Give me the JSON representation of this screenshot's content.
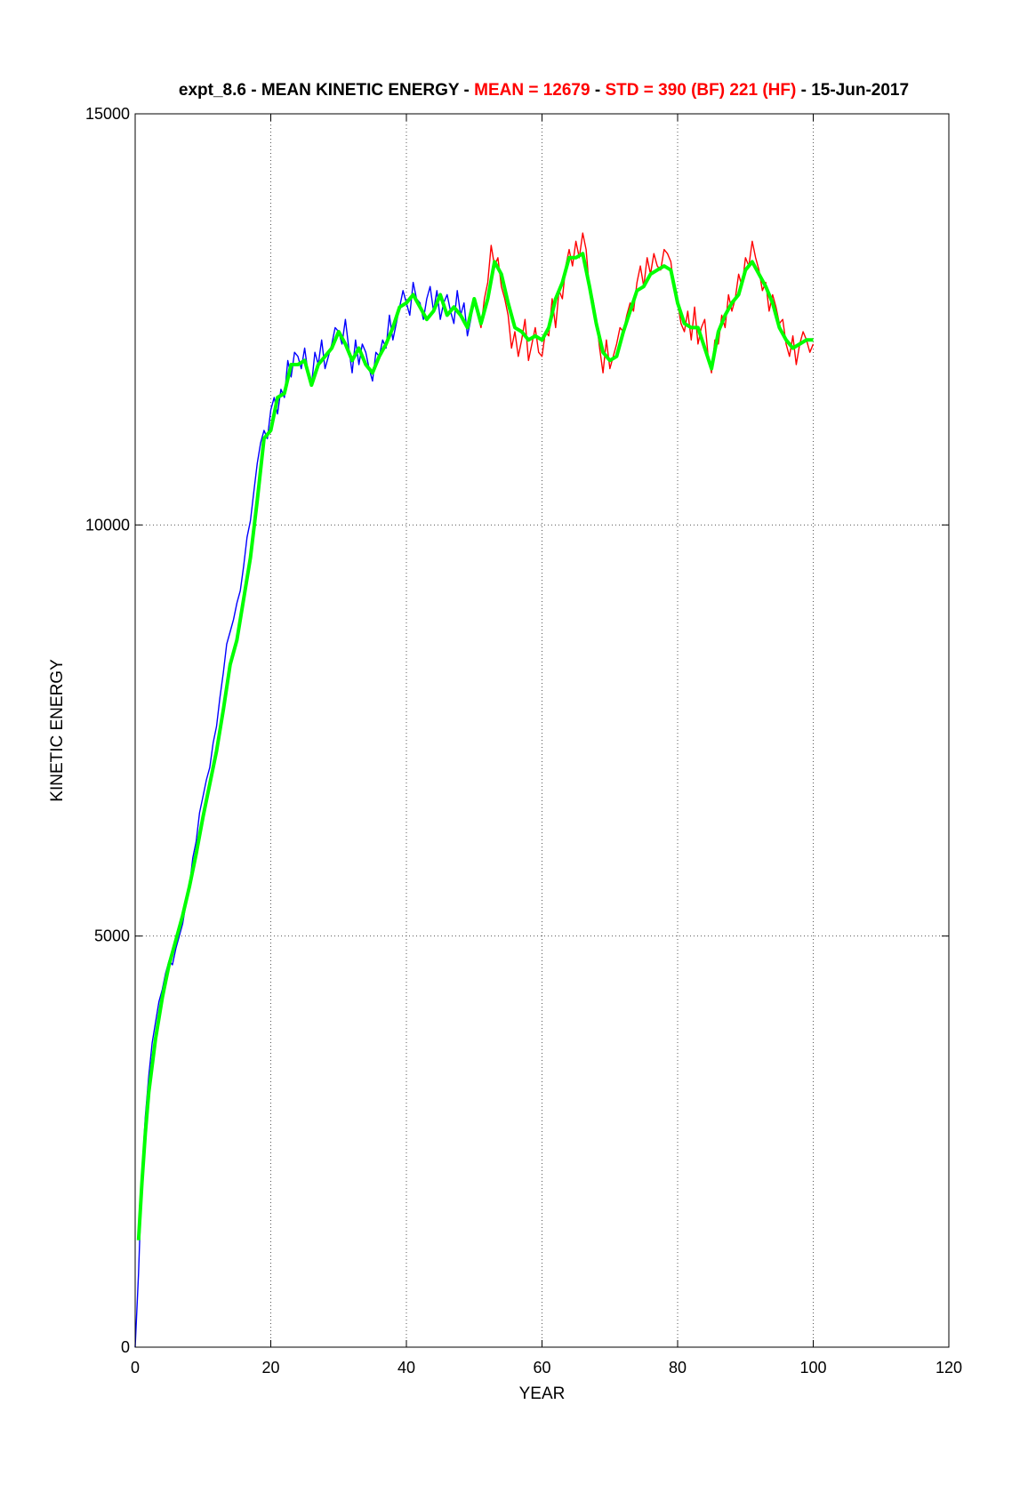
{
  "chart_data": {
    "type": "line",
    "title": {
      "parts": [
        {
          "text": "expt_8.6 - MEAN KINETIC ENERGY - ",
          "color": "#000000"
        },
        {
          "text": "MEAN = 12679",
          "color": "#ff0000"
        },
        {
          "text": " - ",
          "color": "#000000"
        },
        {
          "text": "STD =  390 (BF)  221 (HF)",
          "color": "#ff0000"
        },
        {
          "text": " - 15-Jun-2017",
          "color": "#000000"
        }
      ]
    },
    "xlabel": "YEAR",
    "ylabel": "KINETIC ENERGY",
    "xlim": [
      0,
      120
    ],
    "ylim": [
      0,
      15000
    ],
    "xticks": [
      0,
      20,
      40,
      60,
      80,
      100,
      120
    ],
    "yticks": [
      0,
      5000,
      10000,
      15000
    ],
    "grid": true,
    "series": [
      {
        "color": "#0000ff",
        "role": "raw (years 0-50)",
        "x": [
          0,
          0.5,
          1,
          1.5,
          2,
          2.5,
          3,
          3.5,
          4,
          4.5,
          5,
          5.5,
          6,
          6.5,
          7,
          7.5,
          8,
          8.5,
          9,
          9.5,
          10,
          10.5,
          11,
          11.5,
          12,
          12.5,
          13,
          13.5,
          14,
          14.5,
          15,
          15.5,
          16,
          16.5,
          17,
          17.5,
          18,
          18.5,
          19,
          19.5,
          20,
          20.5,
          21,
          21.5,
          22,
          22.5,
          23,
          23.5,
          24,
          24.5,
          25,
          25.5,
          26,
          26.5,
          27,
          27.5,
          28,
          28.5,
          29,
          29.5,
          30,
          30.5,
          31,
          31.5,
          32,
          32.5,
          33,
          33.5,
          34,
          34.5,
          35,
          35.5,
          36,
          36.5,
          37,
          37.5,
          38,
          38.5,
          39,
          39.5,
          40,
          40.5,
          41,
          41.5,
          42,
          42.5,
          43,
          43.5,
          44,
          44.5,
          45,
          45.5,
          46,
          46.5,
          47,
          47.5,
          48,
          48.5,
          49,
          49.5,
          50
        ],
        "y": [
          0,
          900,
          2100,
          2800,
          3300,
          3700,
          3950,
          4200,
          4350,
          4550,
          4700,
          4650,
          4850,
          5000,
          5150,
          5400,
          5600,
          5950,
          6150,
          6500,
          6700,
          6900,
          7050,
          7350,
          7550,
          7900,
          8200,
          8550,
          8700,
          8850,
          9050,
          9200,
          9500,
          9850,
          10050,
          10400,
          10750,
          11000,
          11150,
          11050,
          11400,
          11550,
          11350,
          11650,
          11550,
          12000,
          11800,
          12100,
          12050,
          11900,
          12150,
          11850,
          11700,
          12100,
          11950,
          12250,
          11900,
          12050,
          12200,
          12400,
          12350,
          12200,
          12500,
          12150,
          11850,
          12250,
          11950,
          12200,
          12100,
          11900,
          11750,
          12100,
          12050,
          12250,
          12150,
          12550,
          12250,
          12450,
          12650,
          12850,
          12700,
          12550,
          12950,
          12750,
          12700,
          12500,
          12750,
          12900,
          12600,
          12850,
          12500,
          12700,
          12800,
          12600,
          12450,
          12850,
          12550,
          12700,
          12300,
          12500,
          12750
        ]
      },
      {
        "color": "#ff0000",
        "role": "raw (years 50-100)",
        "x": [
          50,
          50.5,
          51,
          51.5,
          52,
          52.5,
          53,
          53.5,
          54,
          54.5,
          55,
          55.5,
          56,
          56.5,
          57,
          57.5,
          58,
          58.5,
          59,
          59.5,
          60,
          60.5,
          61,
          61.5,
          62,
          62.5,
          63,
          63.5,
          64,
          64.5,
          65,
          65.5,
          66,
          66.5,
          67,
          67.5,
          68,
          68.5,
          69,
          69.5,
          70,
          70.5,
          71,
          71.5,
          72,
          72.5,
          73,
          73.5,
          74,
          74.5,
          75,
          75.5,
          76,
          76.5,
          77,
          77.5,
          78,
          78.5,
          79,
          79.5,
          80,
          80.5,
          81,
          81.5,
          82,
          82.5,
          83,
          83.5,
          84,
          84.5,
          85,
          85.5,
          86,
          86.5,
          87,
          87.5,
          88,
          88.5,
          89,
          89.5,
          90,
          90.5,
          91,
          91.5,
          92,
          92.5,
          93,
          93.5,
          94,
          94.5,
          95,
          95.5,
          96,
          96.5,
          97,
          97.5,
          98,
          98.5,
          99,
          99.5,
          100
        ],
        "y": [
          12750,
          12550,
          12400,
          12750,
          12950,
          13400,
          13150,
          13250,
          12900,
          12750,
          12550,
          12150,
          12350,
          12050,
          12250,
          12500,
          12000,
          12200,
          12400,
          12100,
          12050,
          12350,
          12300,
          12750,
          12400,
          12850,
          12750,
          13150,
          13350,
          13150,
          13450,
          13250,
          13550,
          13350,
          12850,
          12750,
          12500,
          12150,
          11850,
          12250,
          11900,
          12050,
          12200,
          12400,
          12350,
          12550,
          12700,
          12600,
          12950,
          13150,
          12900,
          13250,
          13050,
          13300,
          13150,
          13100,
          13350,
          13300,
          13200,
          12850,
          12700,
          12450,
          12350,
          12600,
          12250,
          12650,
          12200,
          12400,
          12500,
          12050,
          11850,
          12250,
          12200,
          12550,
          12400,
          12800,
          12600,
          12750,
          13050,
          12900,
          13250,
          13150,
          13450,
          13250,
          13100,
          12850,
          12950,
          12600,
          12800,
          12650,
          12450,
          12500,
          12200,
          12050,
          12300,
          11950,
          12200,
          12350,
          12250,
          12100,
          12200
        ]
      },
      {
        "color": "#00ff00",
        "role": "smoothed",
        "x": [
          0.5,
          1,
          1.5,
          2,
          3,
          4,
          5,
          6,
          7,
          8,
          9,
          10,
          11,
          12,
          13,
          14,
          15,
          16,
          17,
          18,
          19,
          20,
          21,
          22,
          23,
          24,
          25,
          26,
          27,
          28,
          29,
          30,
          31,
          32,
          33,
          34,
          35,
          36,
          37,
          38,
          39,
          40,
          41,
          42,
          43,
          44,
          45,
          46,
          47,
          48,
          49,
          50,
          51,
          52,
          53,
          54,
          55,
          56,
          57,
          58,
          59,
          60,
          61,
          62,
          63,
          64,
          65,
          66,
          67,
          68,
          69,
          70,
          71,
          72,
          73,
          74,
          75,
          76,
          77,
          78,
          79,
          80,
          81,
          82,
          83,
          84,
          85,
          86,
          87,
          88,
          89,
          90,
          91,
          92,
          93,
          94,
          95,
          96,
          97,
          98,
          99,
          100
        ],
        "y": [
          1300,
          2000,
          2600,
          3100,
          3750,
          4250,
          4650,
          4950,
          5250,
          5600,
          6000,
          6450,
          6850,
          7250,
          7750,
          8300,
          8600,
          9100,
          9600,
          10300,
          11050,
          11150,
          11550,
          11600,
          11950,
          11950,
          12000,
          11700,
          11950,
          12050,
          12150,
          12350,
          12200,
          12000,
          12150,
          11950,
          11850,
          12050,
          12200,
          12400,
          12650,
          12700,
          12800,
          12650,
          12500,
          12600,
          12800,
          12550,
          12650,
          12550,
          12400,
          12750,
          12450,
          12750,
          13200,
          13050,
          12700,
          12400,
          12350,
          12250,
          12300,
          12250,
          12400,
          12750,
          12950,
          13250,
          13250,
          13300,
          12900,
          12450,
          12100,
          12000,
          12050,
          12350,
          12600,
          12850,
          12900,
          13050,
          13100,
          13150,
          13100,
          12700,
          12450,
          12400,
          12400,
          12150,
          11900,
          12350,
          12550,
          12700,
          12800,
          13100,
          13200,
          13050,
          12900,
          12700,
          12400,
          12250,
          12150,
          12200,
          12250,
          12250
        ]
      }
    ]
  }
}
